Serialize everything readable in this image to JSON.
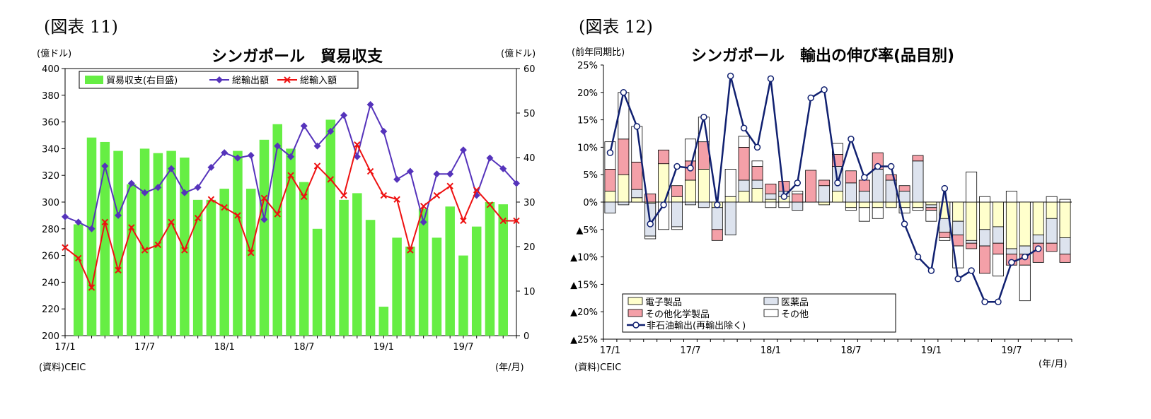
{
  "figure1": {
    "label": "(図表 11)",
    "source": "(資料)CEIC",
    "unit_note": "(年/月)",
    "chart_data": {
      "type": "bar+line",
      "title": "シンガポール　貿易収支",
      "ylabel_left": "(億ドル)",
      "ylabel_right": "(億ドル)",
      "ylim_left": [
        200,
        400
      ],
      "ylim_right": [
        0,
        60
      ],
      "yticks_left": [
        "200",
        "220",
        "240",
        "260",
        "280",
        "300",
        "320",
        "340",
        "360",
        "380",
        "400"
      ],
      "yticks_right": [
        "0",
        "10",
        "20",
        "30",
        "40",
        "50",
        "60"
      ],
      "xtick_labels": [
        {
          "index": 0,
          "label": "17/1"
        },
        {
          "index": 6,
          "label": "17/7"
        },
        {
          "index": 12,
          "label": "18/1"
        },
        {
          "index": 18,
          "label": "18/7"
        },
        {
          "index": 24,
          "label": "19/1"
        },
        {
          "index": 30,
          "label": "19/7"
        }
      ],
      "legend": [
        "貿易収支(右目盛)",
        "総輸出額",
        "総輸入額"
      ],
      "series": [
        {
          "name": "貿易収支(右目盛)",
          "type": "bar",
          "axis": "right",
          "color": "#66EE44",
          "values": [
            25,
            44.5,
            43.5,
            41.5,
            34,
            42,
            41,
            41.5,
            40,
            30.5,
            30.5,
            33,
            41.5,
            33,
            44,
            47.5,
            42,
            34.5,
            24,
            48.5,
            30.5,
            32,
            26,
            6.5,
            22,
            20,
            28.5,
            22,
            29,
            18,
            24.5,
            30,
            29.5
          ]
        },
        {
          "name": "総輸出額",
          "type": "line",
          "axis": "left",
          "color": "#5533BB",
          "values": [
            289,
            285,
            280,
            327,
            290,
            314,
            307,
            311,
            325,
            307,
            311,
            326,
            337,
            333,
            335,
            287,
            342,
            334,
            357,
            342,
            353,
            365,
            334,
            373,
            353,
            317,
            323,
            285,
            321,
            321,
            339,
            305,
            333,
            325,
            314
          ]
        },
        {
          "name": "総輸入額",
          "type": "line",
          "axis": "left",
          "color": "#EE1111",
          "values": [
            266,
            258,
            236,
            285,
            249,
            281,
            264,
            268,
            285,
            264,
            288,
            302,
            296,
            290,
            262,
            303,
            291,
            320,
            304,
            327,
            317,
            305,
            343,
            323,
            305,
            302,
            264,
            297,
            305,
            312,
            286,
            309,
            298,
            286,
            286
          ]
        }
      ]
    }
  },
  "figure2": {
    "label": "(図表 12)",
    "source": "(資料)CEIC",
    "unit_note": "(年/月)",
    "chart_data": {
      "type": "stacked-bar+line",
      "title": "シンガポール　輸出の伸び率(品目別)",
      "ylabel": "(前年同期比)",
      "ylim": [
        -25,
        25
      ],
      "yticks": [
        "▲25%",
        "▲20%",
        "▲15%",
        "▲10%",
        "▲5%",
        "0%",
        "5%",
        "10%",
        "15%",
        "20%",
        "25%"
      ],
      "xtick_labels": [
        {
          "index": 0,
          "label": "17/1"
        },
        {
          "index": 6,
          "label": "17/7"
        },
        {
          "index": 12,
          "label": "18/1"
        },
        {
          "index": 18,
          "label": "18/7"
        },
        {
          "index": 24,
          "label": "19/1"
        },
        {
          "index": 30,
          "label": "19/7"
        }
      ],
      "legend": [
        "電子製品",
        "医薬品",
        "その他化学製品",
        "その他",
        "非石油輸出(再輸出除く)"
      ],
      "colors": {
        "electronics": "#FFFFCC",
        "pharma": "#DDE3EE",
        "chemicals": "#F4A0A8",
        "other": "#FFFFFF",
        "line": "#102070"
      },
      "series": [
        {
          "name": "電子製品",
          "values": [
            2,
            5,
            0.8,
            -0.2,
            7,
            1,
            4,
            6,
            -1,
            1,
            2,
            2.5,
            0.5,
            1,
            0,
            0,
            -0.5,
            2,
            -1,
            -1,
            -1,
            -1,
            -1,
            -1,
            -0.5,
            -3,
            -3.5,
            -7,
            -5,
            -4.5,
            -8.5,
            -8,
            -6,
            -3,
            -6.5
          ]
        },
        {
          "name": "医薬品",
          "values": [
            -2,
            -0.5,
            1.5,
            -6,
            0,
            -4.5,
            -0.5,
            -1,
            -4,
            -6,
            2,
            1.5,
            1,
            1,
            -1.5,
            0,
            3,
            4.5,
            3.5,
            2,
            6,
            4,
            2,
            7.5,
            -0.5,
            -2.5,
            -2.5,
            -0.5,
            -3,
            -3,
            -1,
            -1.5,
            -1.5,
            -4.5,
            -3
          ]
        },
        {
          "name": "その他化学製品",
          "values": [
            4,
            6.5,
            5,
            1.5,
            2.5,
            2,
            3.5,
            5,
            -2,
            0,
            6,
            2.5,
            1.8,
            1.8,
            1.5,
            5.8,
            1,
            2.2,
            2.2,
            2,
            3,
            1,
            1,
            1,
            -0.5,
            -1,
            -2,
            -1,
            -5,
            -2,
            -2,
            -2,
            -3.5,
            -1.5,
            -1.5
          ]
        },
        {
          "name": "その他",
          "values": [
            5,
            8.5,
            6.5,
            -0.5,
            -5,
            -0.5,
            4,
            4.5,
            0,
            5,
            2,
            1,
            -1,
            -1,
            0.5,
            0,
            0,
            2,
            -0.5,
            -2.5,
            -2,
            0,
            -1,
            -0.5,
            -2,
            -0.5,
            -4,
            5.5,
            1,
            -4,
            2,
            -6.5,
            0,
            1,
            0.5
          ]
        },
        {
          "name": "非石油輸出(再輸出除く)",
          "type": "line",
          "values": [
            9,
            20,
            13.8,
            -4,
            -0.5,
            6.5,
            6.2,
            15.5,
            -0.5,
            23,
            13.5,
            10,
            22.5,
            1,
            3.5,
            19,
            20.5,
            3.5,
            11.5,
            4.5,
            6.5,
            6.5,
            -4,
            -10,
            -12.5,
            2.5,
            -14,
            -12.5,
            -18.2,
            -18.2,
            -11,
            -10,
            -8.5,
            null,
            null
          ]
        }
      ]
    }
  }
}
